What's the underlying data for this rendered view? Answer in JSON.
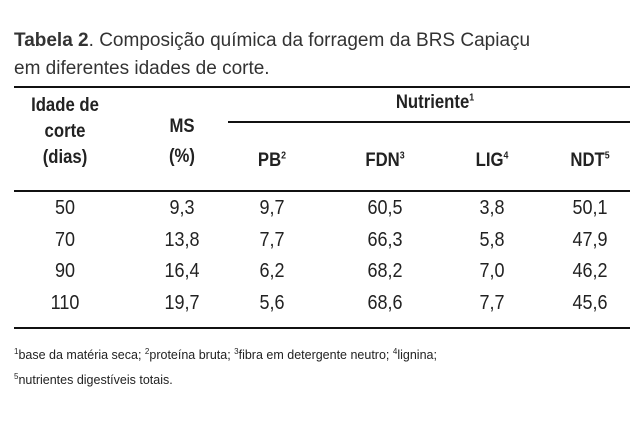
{
  "title": {
    "label": "Tabela 2",
    "text": ". Composição química da forragem da BRS Capiaçu",
    "text_line2": "em diferentes idades de corte."
  },
  "header": {
    "age": [
      "Idade de",
      "corte",
      "(dias)"
    ],
    "ms": [
      "MS",
      "(%)"
    ],
    "group": {
      "text": "Nutriente",
      "mark": "1"
    },
    "columns": [
      {
        "text": "PB",
        "mark": "2"
      },
      {
        "text": "FDN",
        "mark": "3"
      },
      {
        "text": "LIG",
        "mark": "4"
      },
      {
        "text": "NDT",
        "mark": "5"
      }
    ]
  },
  "table": {
    "rows": [
      [
        "50",
        "9,3",
        "9,7",
        "60,5",
        "3,8",
        "50,1"
      ],
      [
        "70",
        "13,8",
        "7,7",
        "66,3",
        "5,8",
        "47,9"
      ],
      [
        "90",
        "16,4",
        "6,2",
        "68,2",
        "7,0",
        "46,2"
      ],
      [
        "110",
        "19,7",
        "5,6",
        "68,6",
        "7,7",
        "45,6"
      ]
    ]
  },
  "footnotes": [
    {
      "mark": "1",
      "text": "base da matéria seca; "
    },
    {
      "mark": "2",
      "text": "proteína bruta; "
    },
    {
      "mark": "3",
      "text": "fibra em detergente neutro; "
    },
    {
      "mark": "4",
      "text": "lignina;"
    },
    {
      "mark": "5",
      "text": "nutrientes digestíveis totais."
    }
  ]
}
